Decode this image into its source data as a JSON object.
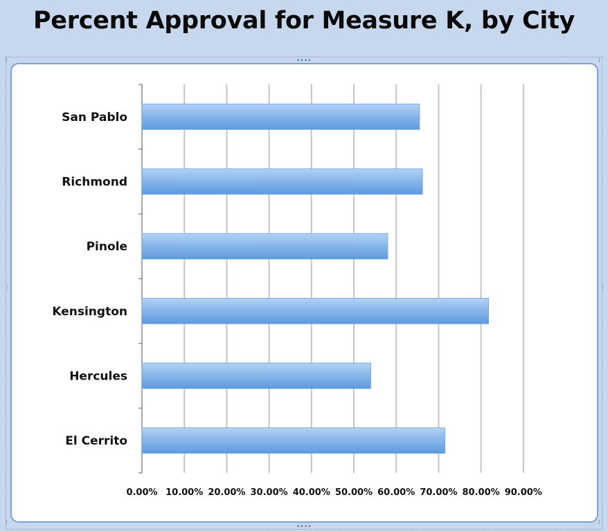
{
  "title": "Percent Approval for Measure K, by City",
  "colors": {
    "background": "#c6d7ee",
    "bar_light": "#b3d2f4",
    "bar_mid": "#8ab8ea",
    "bar_dark": "#5f9ae0",
    "gridline": "#c4c4c4"
  },
  "chart_data": {
    "type": "bar",
    "orientation": "horizontal",
    "title": "Percent Approval for Measure K, by City",
    "categories": [
      "San Pablo",
      "Richmond",
      "Pinole",
      "Kensington",
      "Hercules",
      "El Cerrito"
    ],
    "values": [
      65.5,
      66.2,
      58.0,
      81.8,
      54.0,
      71.5
    ],
    "xlabel": "",
    "ylabel": "",
    "xlim": [
      0,
      90
    ],
    "x_ticks": [
      0,
      10,
      20,
      30,
      40,
      50,
      60,
      70,
      80,
      90
    ],
    "x_tick_labels": [
      "0.00%",
      "10.00%",
      "20.00%",
      "30.00%",
      "40.00%",
      "50.00%",
      "60.00%",
      "70.00%",
      "80.00%",
      "90.00%"
    ],
    "grid": true,
    "legend": "none"
  }
}
